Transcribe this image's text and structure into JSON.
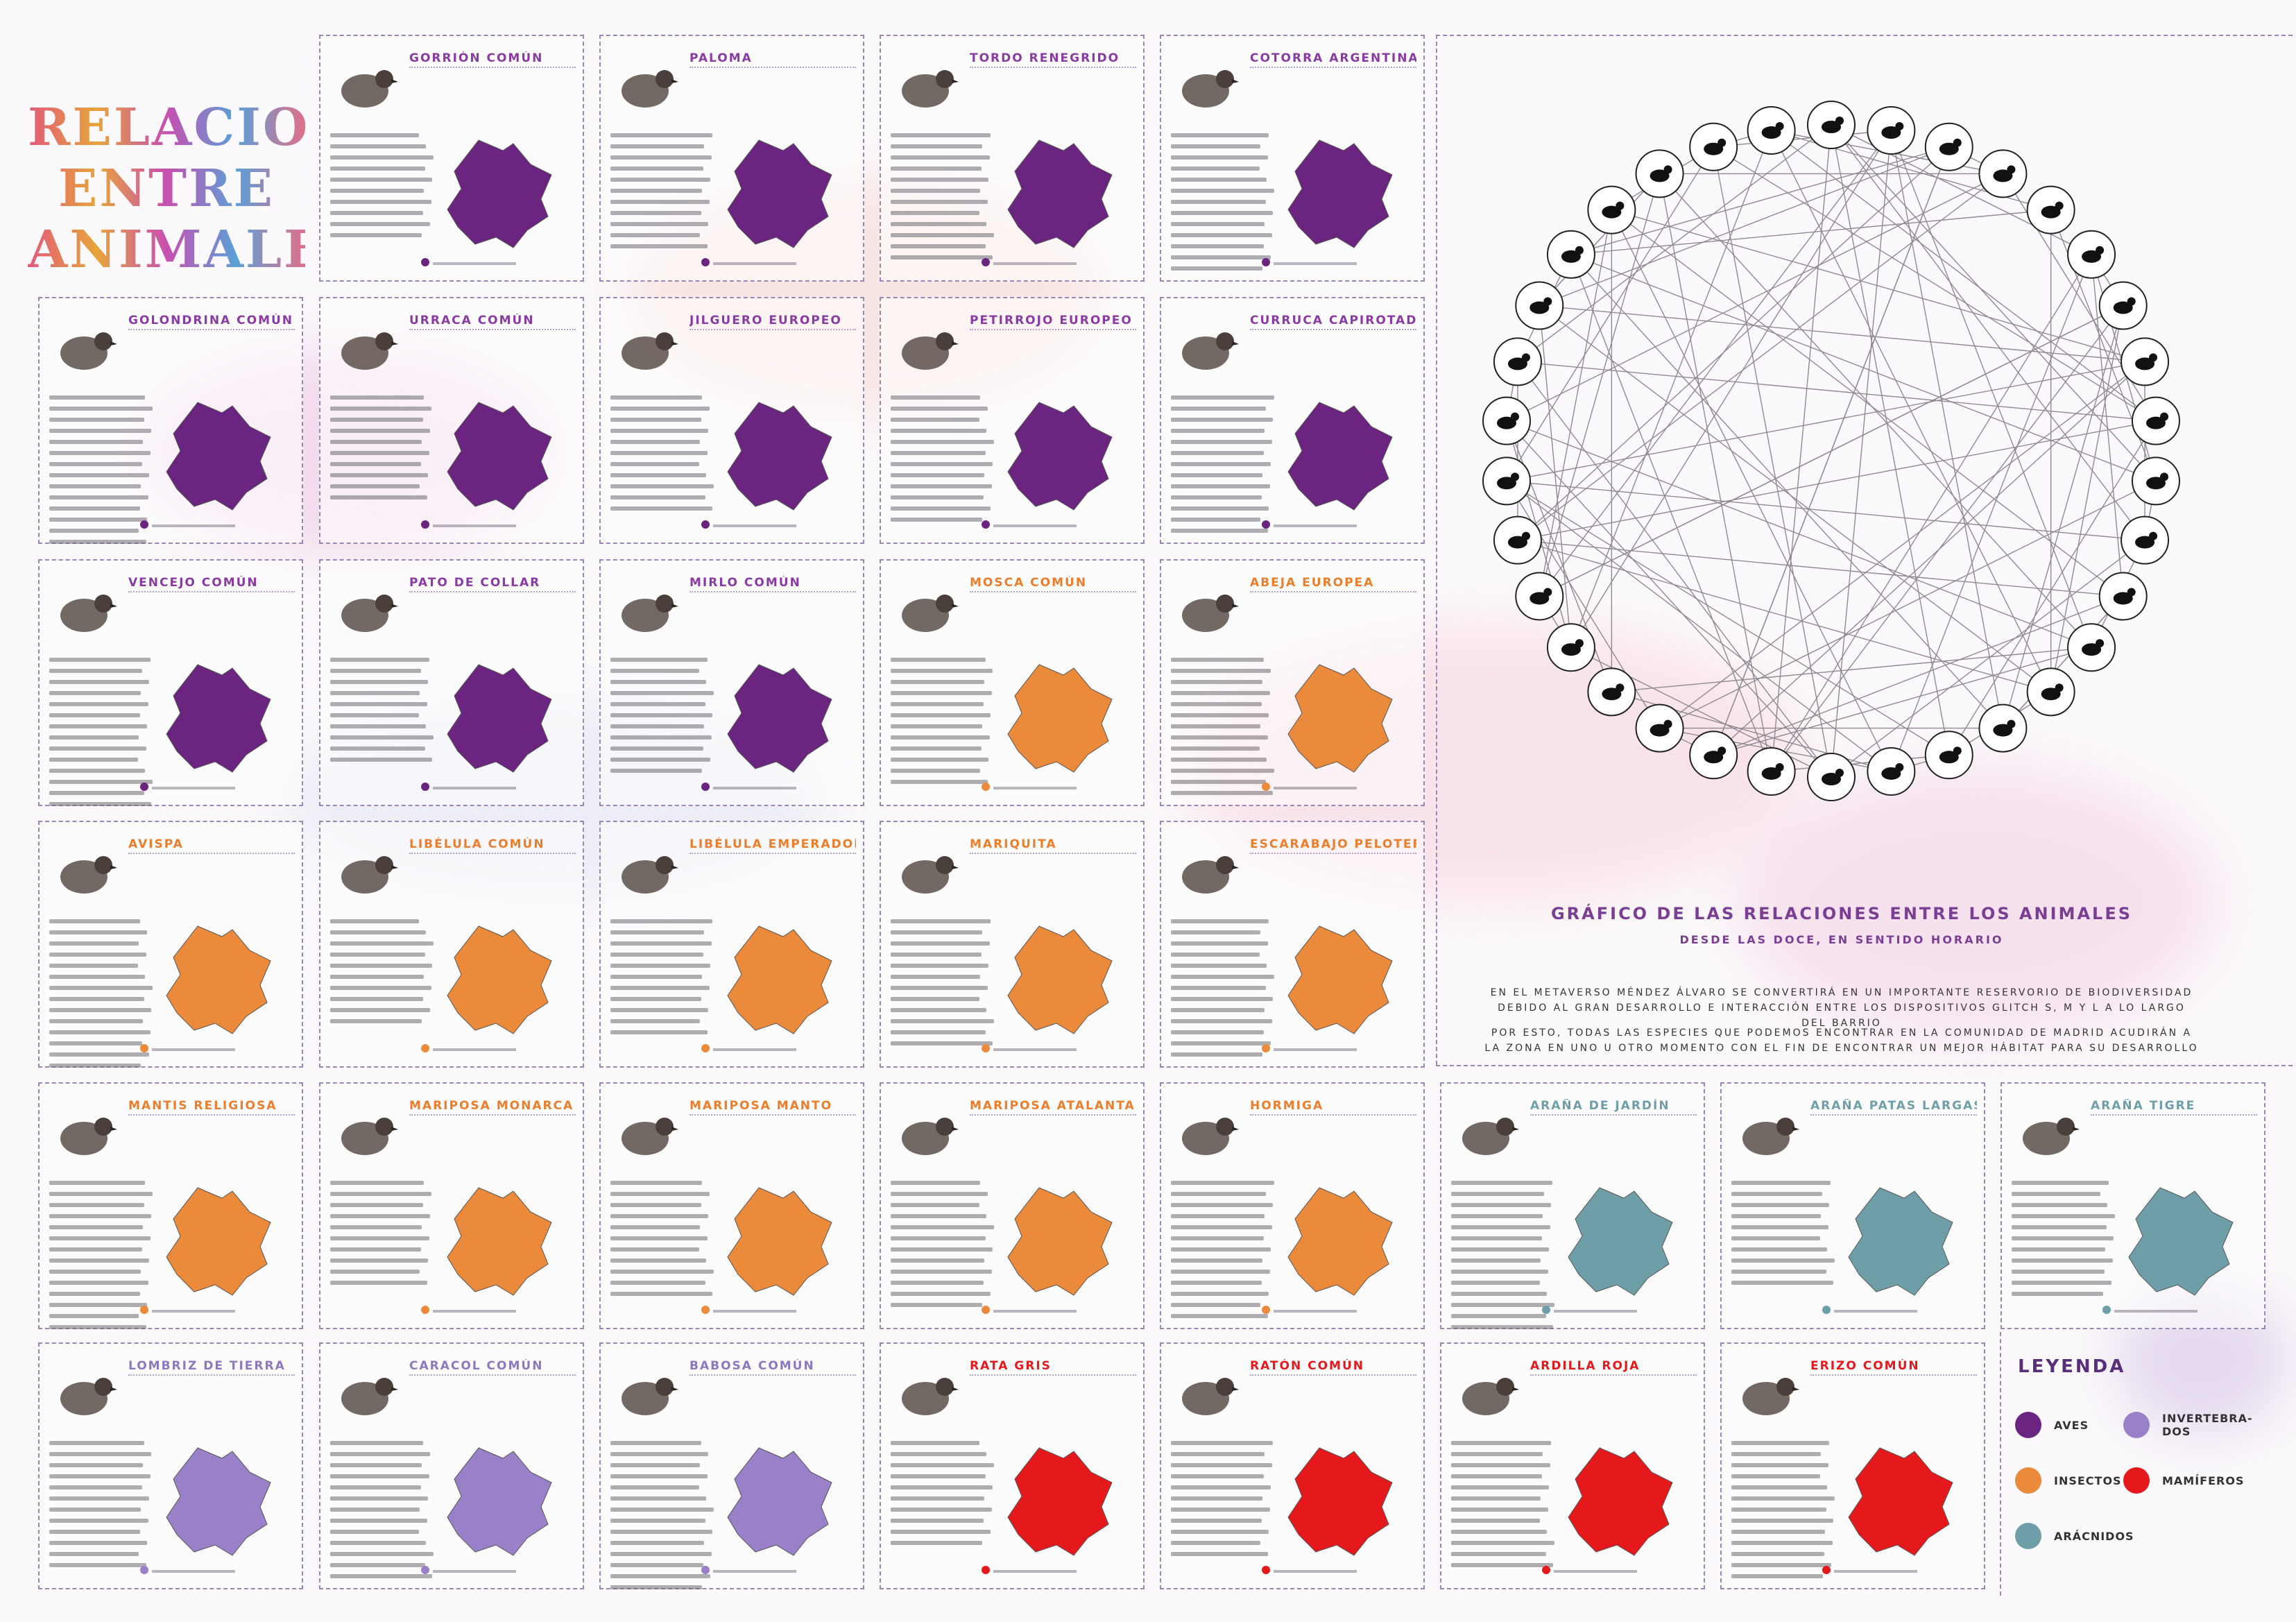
{
  "title": "RELACIONES ENTRE ANIMALES",
  "colors": {
    "aves": "#6b2580",
    "insectos": "#ec8a3c",
    "arachnidos": "#6e9fa8",
    "invertebrados": "#9a80c8",
    "mamiferos": "#e5191c",
    "frame": "#9a86b4"
  },
  "cards": [
    {
      "name": "GORRIÓN COMÚN",
      "cls": "aves"
    },
    {
      "name": "PALOMA",
      "cls": "aves"
    },
    {
      "name": "TORDO RENEGRIDO",
      "cls": "aves"
    },
    {
      "name": "COTORRA ARGENTINA",
      "cls": "aves"
    },
    {
      "name": "GOLONDRINA COMÚN",
      "cls": "aves"
    },
    {
      "name": "URRACA COMÚN",
      "cls": "aves"
    },
    {
      "name": "JILGUERO EUROPEO",
      "cls": "aves"
    },
    {
      "name": "PETIRROJO EUROPEO",
      "cls": "aves"
    },
    {
      "name": "CURRUCA CAPIROTADA",
      "cls": "aves"
    },
    {
      "name": "VENCEJO COMÚN",
      "cls": "aves"
    },
    {
      "name": "PATO DE COLLAR",
      "cls": "aves"
    },
    {
      "name": "MIRLO COMÚN",
      "cls": "aves"
    },
    {
      "name": "MOSCA COMÚN",
      "cls": "insectos"
    },
    {
      "name": "ABEJA EUROPEA",
      "cls": "insectos"
    },
    {
      "name": "AVISPA",
      "cls": "insectos"
    },
    {
      "name": "LIBÉLULA COMÚN",
      "cls": "insectos"
    },
    {
      "name": "LIBÉLULA EMPERADOR",
      "cls": "insectos"
    },
    {
      "name": "MARIQUITA",
      "cls": "insectos"
    },
    {
      "name": "ESCARABAJO PELOTERO",
      "cls": "insectos"
    },
    {
      "name": "MANTIS RELIGIOSA",
      "cls": "insectos"
    },
    {
      "name": "MARIPOSA MONARCA",
      "cls": "insectos"
    },
    {
      "name": "MARIPOSA MANTO",
      "cls": "insectos"
    },
    {
      "name": "MARIPOSA ATALANTA",
      "cls": "insectos"
    },
    {
      "name": "HORMIGA",
      "cls": "insectos"
    },
    {
      "name": "ARAÑA DE JARDÍN",
      "cls": "arachnidos"
    },
    {
      "name": "ARAÑA PATAS LARGAS",
      "cls": "arachnidos"
    },
    {
      "name": "ARAÑA TIGRE",
      "cls": "arachnidos"
    },
    {
      "name": "LOMBRIZ DE TIERRA",
      "cls": "invertebrados"
    },
    {
      "name": "CARACOL COMÚN",
      "cls": "invertebrados"
    },
    {
      "name": "BABOSA COMÚN",
      "cls": "invertebrados"
    },
    {
      "name": "RATA GRIS",
      "cls": "mamiferos"
    },
    {
      "name": "RATÓN COMÚN",
      "cls": "mamiferos"
    },
    {
      "name": "ARDILLA ROJA",
      "cls": "mamiferos"
    },
    {
      "name": "ERIZO COMÚN",
      "cls": "mamiferos"
    }
  ],
  "chart": {
    "title": "GRÁFICO DE LAS RELACIONES ENTRE LOS ANIMALES",
    "subtitle": "DESDE LAS DOCE, EN SENTIDO HORARIO",
    "paragraph1": "EN EL METAVERSO MÉNDEZ ÁLVARO SE CONVERTIRÁ EN UN IMPORTANTE RESERVORIO DE BIODIVERSIDAD DEBIDO AL GRAN DESARROLLO E INTERACCIÓN ENTRE LOS DISPOSITIVOS GLITCH S, M Y L A LO LARGO DEL BARRIO",
    "paragraph2": "POR ESTO, TODAS LAS ESPECIES QUE PODEMOS ENCONTRAR EN LA COMUNIDAD DE MADRID ACUDIRÁN A LA ZONA EN UNO U OTRO MOMENTO CON EL FIN DE ENCONTRAR UN MEJOR HÁBITAT PARA SU DESARROLLO"
  },
  "legend": {
    "title": "LEYENDA",
    "aves": "AVES",
    "invertebrados": "INVERTEBRA-DOS",
    "insectos": "INSECTOS",
    "mamiferos": "MAMÍFEROS",
    "arachnidos": "ARÁCNIDOS"
  }
}
